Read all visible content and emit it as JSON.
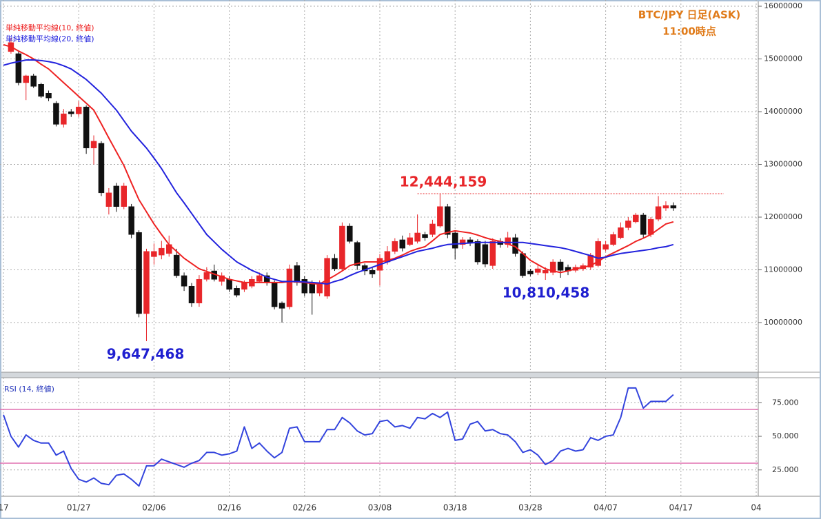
{
  "chart_data": [
    {
      "type": "candlestick",
      "title": "BTC/JPY 日足(ASK)",
      "subtitle": "11:00時点",
      "categories": [
        "17",
        null,
        null,
        null,
        null,
        null,
        null,
        null,
        null,
        null,
        "01/27",
        null,
        null,
        null,
        null,
        null,
        null,
        null,
        null,
        null,
        "02/06",
        null,
        null,
        null,
        null,
        null,
        null,
        null,
        null,
        null,
        "02/16",
        null,
        null,
        null,
        null,
        null,
        null,
        null,
        null,
        null,
        "02/26",
        null,
        null,
        null,
        null,
        null,
        null,
        null,
        null,
        null,
        "03/08",
        null,
        null,
        null,
        null,
        null,
        null,
        null,
        null,
        null,
        "03/18",
        null,
        null,
        null,
        null,
        null,
        null,
        null,
        null,
        null,
        "03/28",
        null,
        null,
        null,
        null,
        null,
        null,
        null,
        null,
        null,
        "04/07",
        null,
        null,
        null,
        null,
        null,
        null,
        null,
        null,
        null,
        "04/17",
        null,
        null,
        null,
        null,
        null,
        null,
        null,
        null,
        null,
        "04"
      ],
      "open": [
        null,
        15140000,
        15100000,
        14550000,
        14680000,
        14520000,
        14350000,
        14160000,
        13760000,
        14000000,
        13960000,
        14090000,
        13310000,
        13400000,
        12200000,
        12590000,
        12200000,
        12200000,
        11710000,
        10170000,
        11250000,
        11280000,
        11310000,
        11280000,
        10890000,
        10690000,
        10370000,
        10820000,
        10980000,
        10780000,
        10820000,
        10650000,
        10630000,
        10690000,
        10780000,
        10890000,
        10760000,
        10370000,
        10300000,
        11080000,
        10820000,
        10760000,
        10560000,
        10500000,
        11220000,
        11020000,
        11830000,
        11520000,
        11080000,
        10990000,
        10990000,
        11150000,
        11350000,
        11570000,
        11480000,
        11540000,
        11670000,
        11670000,
        11830000,
        12200000,
        11700000,
        11480000,
        11570000,
        11540000,
        11480000,
        11080000,
        11540000,
        11480000,
        11610000,
        11310000,
        10980000,
        10950000,
        10940000,
        10950000,
        11150000,
        11050000,
        10990000,
        11020000,
        11050000,
        11080000,
        11390000,
        11480000,
        11610000,
        11800000,
        11910000,
        12040000,
        11670000,
        11960000,
        12170000,
        12220000,
        null,
        null,
        null,
        null,
        null,
        null,
        null,
        null,
        null,
        null,
        null
      ],
      "high": [
        null,
        15400000,
        15140000,
        14700000,
        14720000,
        14550000,
        14400000,
        14200000,
        14050000,
        14050000,
        14200000,
        14120000,
        13550000,
        13440000,
        12550000,
        12650000,
        12650000,
        12250000,
        11750000,
        11400000,
        11500000,
        11550000,
        11650000,
        11400000,
        10950000,
        10750000,
        10900000,
        11050000,
        11100000,
        10950000,
        10880000,
        10700000,
        10800000,
        10880000,
        10950000,
        10950000,
        10800000,
        10400000,
        11100000,
        11150000,
        10880000,
        10800000,
        10800000,
        11280000,
        11300000,
        11900000,
        11880000,
        11550000,
        11120000,
        11050000,
        11300000,
        11450000,
        11600000,
        11650000,
        11700000,
        12050000,
        11720000,
        11950000,
        12444159,
        12250000,
        11750000,
        11620000,
        11620000,
        11580000,
        11550000,
        11600000,
        11600000,
        11720000,
        11680000,
        11350000,
        11020000,
        11100000,
        11050000,
        11200000,
        11200000,
        11100000,
        11100000,
        11120000,
        11320000,
        11600000,
        11550000,
        11720000,
        11900000,
        12000000,
        12080000,
        12080000,
        12000000,
        12400000,
        12300000,
        12280000,
        null,
        null,
        null,
        null,
        null,
        null,
        null,
        null,
        null,
        null,
        null
      ],
      "low": [
        null,
        15100000,
        14500000,
        14220000,
        14450000,
        14260000,
        14200000,
        13720000,
        13700000,
        13900000,
        13900000,
        13200000,
        13000000,
        12400000,
        12050000,
        12100000,
        12150000,
        11600000,
        10100000,
        9647468,
        11100000,
        11200000,
        11250000,
        10850000,
        10600000,
        10300000,
        10300000,
        10780000,
        10780000,
        10700000,
        10580000,
        10480000,
        10580000,
        10650000,
        10750000,
        10700000,
        10250000,
        10000000,
        10250000,
        10700000,
        10500000,
        10150000,
        10500000,
        10450000,
        10980000,
        10980000,
        11500000,
        11000000,
        10900000,
        10850000,
        10700000,
        11100000,
        11300000,
        11350000,
        11450000,
        11500000,
        11550000,
        11620000,
        11800000,
        11600000,
        11200000,
        11400000,
        11450000,
        11100000,
        11050000,
        11020000,
        11420000,
        11420000,
        11250000,
        10850000,
        10880000,
        10900000,
        10810458,
        10900000,
        10850000,
        10900000,
        10950000,
        10980000,
        11000000,
        11050000,
        11350000,
        11450000,
        11580000,
        11750000,
        11880000,
        11600000,
        11620000,
        11920000,
        12120000,
        12120000,
        null,
        null,
        null,
        null,
        null,
        null,
        null,
        null,
        null,
        null,
        null
      ],
      "close": [
        null,
        15310000,
        14550000,
        14680000,
        14480000,
        14290000,
        14260000,
        13760000,
        13960000,
        13960000,
        14090000,
        13310000,
        13440000,
        12460000,
        12460000,
        12200000,
        12590000,
        11670000,
        10170000,
        11350000,
        11350000,
        11410000,
        11480000,
        10890000,
        10690000,
        10370000,
        10820000,
        10950000,
        10820000,
        10890000,
        10630000,
        10520000,
        10760000,
        10820000,
        10890000,
        10760000,
        10300000,
        10270000,
        11020000,
        10760000,
        10560000,
        10560000,
        10760000,
        11220000,
        11020000,
        11830000,
        11540000,
        11080000,
        10980000,
        10920000,
        11220000,
        11350000,
        11540000,
        11410000,
        11610000,
        11700000,
        11610000,
        11870000,
        12200000,
        11670000,
        11410000,
        11570000,
        11520000,
        11150000,
        11110000,
        11540000,
        11480000,
        11610000,
        11310000,
        10890000,
        10920000,
        11020000,
        10990000,
        11150000,
        10990000,
        10980000,
        11050000,
        11080000,
        11280000,
        11540000,
        11480000,
        11670000,
        11800000,
        11930000,
        12040000,
        11670000,
        11960000,
        12200000,
        12220000,
        12170000,
        null,
        null,
        null,
        null,
        null,
        null,
        null,
        null,
        null,
        null,
        null
      ],
      "up_color": "#e8262a",
      "down_color": "#111111",
      "series": [
        {
          "name": "単純移動平均線(10, 終値)",
          "color": "#ee2222",
          "values": [
            15270000,
            15230000,
            15150000,
            15080000,
            15000000,
            14900000,
            14810000,
            14680000,
            14550000,
            14420000,
            14290000,
            14160000,
            14030000,
            13770000,
            13500000,
            13240000,
            12980000,
            12650000,
            12330000,
            12100000,
            11870000,
            11670000,
            11480000,
            11350000,
            11220000,
            11120000,
            11020000,
            10970000,
            10920000,
            10870000,
            10820000,
            10790000,
            10760000,
            10760000,
            10760000,
            10760000,
            10760000,
            10760000,
            10780000,
            10770000,
            10760000,
            10740000,
            10730000,
            10810000,
            10890000,
            10980000,
            11080000,
            11120000,
            11150000,
            11150000,
            11150000,
            11180000,
            11220000,
            11280000,
            11350000,
            11400000,
            11440000,
            11550000,
            11670000,
            11710000,
            11740000,
            11720000,
            11700000,
            11660000,
            11610000,
            11570000,
            11540000,
            11490000,
            11440000,
            11310000,
            11180000,
            11100000,
            11020000,
            10980000,
            10950000,
            10980000,
            11020000,
            11050000,
            11080000,
            11160000,
            11250000,
            11320000,
            11390000,
            11460000,
            11540000,
            11600000,
            11670000,
            11770000,
            11870000,
            11910000,
            null,
            null,
            null,
            null,
            null,
            null,
            null,
            null,
            null,
            null,
            null
          ]
        },
        {
          "name": "単純移動平均線(20, 終値)",
          "color": "#2222dd",
          "values": [
            14880000,
            14920000,
            14950000,
            14980000,
            14980000,
            14970000,
            14950000,
            14920000,
            14870000,
            14810000,
            14710000,
            14610000,
            14480000,
            14350000,
            14190000,
            14030000,
            13830000,
            13630000,
            13470000,
            13310000,
            13120000,
            12920000,
            12690000,
            12460000,
            12270000,
            12070000,
            11870000,
            11670000,
            11530000,
            11390000,
            11270000,
            11150000,
            11070000,
            10990000,
            10930000,
            10860000,
            10820000,
            10780000,
            10780000,
            10780000,
            10770000,
            10760000,
            10750000,
            10730000,
            10780000,
            10820000,
            10890000,
            10950000,
            11000000,
            11050000,
            11100000,
            11150000,
            11200000,
            11250000,
            11300000,
            11350000,
            11380000,
            11410000,
            11450000,
            11480000,
            11490000,
            11500000,
            11510000,
            11520000,
            11520000,
            11520000,
            11520000,
            11520000,
            11520000,
            11520000,
            11500000,
            11480000,
            11460000,
            11440000,
            11420000,
            11390000,
            11350000,
            11310000,
            11270000,
            11220000,
            11240000,
            11280000,
            11310000,
            11330000,
            11350000,
            11370000,
            11390000,
            11420000,
            11440000,
            11480000,
            null,
            null,
            null,
            null,
            null,
            null,
            null,
            null,
            null,
            null,
            null
          ]
        }
      ],
      "ylim": [
        9059000,
        16118000
      ],
      "yticks": [
        10000000,
        11000000,
        12000000,
        13000000,
        14000000,
        15000000,
        16000000
      ],
      "grid": true,
      "annotations": [
        {
          "label": "12,444,159",
          "value": 12444159,
          "color": "#e8262a",
          "line": true
        },
        {
          "label": "9,647,468",
          "value": 9647468,
          "color": "#1f1fd0"
        },
        {
          "label": "10,810,458",
          "value": 10810458,
          "color": "#1f1fd0"
        }
      ]
    },
    {
      "type": "line",
      "title": "RSI (14, 終値)",
      "color": "#3344dd",
      "values": [
        66,
        50,
        42,
        51,
        47,
        45,
        45,
        36,
        39,
        26,
        18,
        16,
        19,
        15,
        14,
        21,
        22,
        18,
        13,
        28,
        28,
        33,
        31,
        29,
        27,
        30,
        32,
        38,
        38,
        36,
        37,
        39,
        57,
        41,
        45,
        39,
        34,
        38,
        56,
        57,
        46,
        46,
        46,
        55,
        55,
        64,
        60,
        54,
        51,
        52,
        61,
        62,
        57,
        58,
        56,
        64,
        63,
        67,
        64,
        68,
        47,
        48,
        59,
        61,
        54,
        55,
        52,
        51,
        46,
        38,
        40,
        36,
        29,
        32,
        39,
        41,
        39,
        40,
        49,
        47,
        50,
        51,
        64,
        86,
        86,
        71,
        76,
        76,
        76,
        81,
        null,
        null,
        null,
        null,
        null,
        null,
        null,
        null,
        null,
        null,
        null
      ],
      "ylim": [
        5.4,
        93.6
      ],
      "yticks": [
        {
          "value": 25,
          "label": "25.000"
        },
        {
          "value": 50,
          "label": "50.000"
        },
        {
          "value": 75,
          "label": "75.000"
        }
      ],
      "hlines": [
        30,
        70
      ],
      "hline_color": "#e070b0",
      "grid": true
    }
  ]
}
